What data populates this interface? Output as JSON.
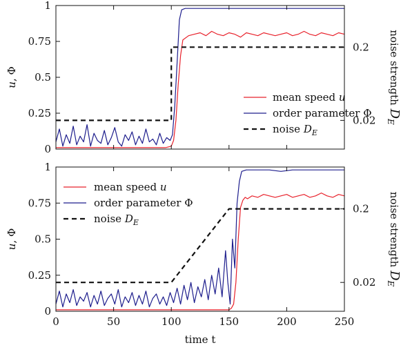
{
  "colors": {
    "speed": "#e8202a",
    "order": "#1c1c8c",
    "noise": "#111111"
  },
  "chart_data": [
    {
      "type": "line",
      "title": "",
      "xlim": [
        0,
        250
      ],
      "ylim": [
        0,
        1
      ],
      "x_ticks": [],
      "y_ticks": [
        0,
        0.25,
        0.5,
        0.75,
        1
      ],
      "y_tick_labels": [
        "0",
        "0.25",
        "0.5",
        "0.75",
        "1"
      ],
      "right_ticks": [
        0.02,
        0.2
      ],
      "right_tick_labels": [
        "0.02",
        "0.2"
      ],
      "ylabel_parts": [
        "u",
        ", Φ"
      ],
      "y2label_parts": [
        "noise strength ",
        "D",
        "E"
      ],
      "grid": false,
      "legend_position": "center-right",
      "legend": [
        {
          "text": "mean speed ",
          "var": "u",
          "sub": "",
          "style": "solid",
          "color": "#e8202a"
        },
        {
          "text": "order parameter Φ",
          "var": "",
          "sub": "",
          "style": "solid",
          "color": "#1c1c8c"
        },
        {
          "text": "noise ",
          "var": "D",
          "sub": "E",
          "style": "dashed",
          "color": "#111111"
        }
      ],
      "series": [
        {
          "key": "speed",
          "color": "#e8202a",
          "style": "solid",
          "x": [
            0,
            5,
            10,
            15,
            20,
            25,
            30,
            35,
            40,
            45,
            50,
            55,
            60,
            65,
            70,
            75,
            80,
            85,
            90,
            95,
            100,
            102,
            104,
            106,
            108,
            110,
            115,
            120,
            125,
            130,
            135,
            140,
            145,
            150,
            155,
            160,
            165,
            170,
            175,
            180,
            185,
            190,
            195,
            200,
            205,
            210,
            215,
            220,
            225,
            230,
            235,
            240,
            245,
            250
          ],
          "y": [
            0.01,
            0.01,
            0.01,
            0.01,
            0.01,
            0.01,
            0.01,
            0.01,
            0.01,
            0.01,
            0.01,
            0.01,
            0.01,
            0.01,
            0.01,
            0.01,
            0.01,
            0.01,
            0.01,
            0.01,
            0.02,
            0.06,
            0.2,
            0.45,
            0.65,
            0.76,
            0.79,
            0.8,
            0.81,
            0.79,
            0.82,
            0.8,
            0.79,
            0.81,
            0.8,
            0.78,
            0.81,
            0.8,
            0.79,
            0.81,
            0.8,
            0.79,
            0.8,
            0.81,
            0.79,
            0.8,
            0.82,
            0.8,
            0.79,
            0.81,
            0.8,
            0.79,
            0.81,
            0.8
          ]
        },
        {
          "key": "order",
          "color": "#1c1c8c",
          "style": "solid",
          "x": [
            0,
            3,
            6,
            9,
            12,
            15,
            18,
            21,
            24,
            27,
            30,
            33,
            36,
            39,
            42,
            45,
            48,
            51,
            54,
            57,
            60,
            63,
            66,
            69,
            72,
            75,
            78,
            81,
            84,
            87,
            90,
            93,
            96,
            99,
            101,
            103,
            105,
            107,
            109,
            112,
            120,
            130,
            140,
            150,
            160,
            170,
            180,
            190,
            200,
            210,
            220,
            230,
            240,
            250
          ],
          "y": [
            0.05,
            0.14,
            0.02,
            0.1,
            0.04,
            0.16,
            0.03,
            0.09,
            0.05,
            0.17,
            0.02,
            0.11,
            0.06,
            0.04,
            0.13,
            0.03,
            0.08,
            0.15,
            0.05,
            0.02,
            0.1,
            0.06,
            0.12,
            0.03,
            0.09,
            0.04,
            0.14,
            0.05,
            0.07,
            0.03,
            0.11,
            0.04,
            0.08,
            0.06,
            0.1,
            0.3,
            0.6,
            0.9,
            0.97,
            0.98,
            0.98,
            0.98,
            0.98,
            0.98,
            0.98,
            0.98,
            0.98,
            0.98,
            0.98,
            0.98,
            0.98,
            0.98,
            0.98,
            0.98
          ]
        },
        {
          "key": "noise",
          "color": "#111111",
          "style": "dashed",
          "x": [
            0,
            100,
            100,
            250
          ],
          "y": [
            0.2,
            0.2,
            0.71,
            0.71
          ]
        }
      ]
    },
    {
      "type": "line",
      "title": "",
      "xlim": [
        0,
        250
      ],
      "ylim": [
        0,
        1
      ],
      "x_ticks": [
        0,
        50,
        100,
        150,
        200,
        250
      ],
      "x_tick_labels": [
        "0",
        "50",
        "100",
        "150",
        "200",
        "250"
      ],
      "y_ticks": [
        0,
        0.25,
        0.5,
        0.75,
        1
      ],
      "y_tick_labels": [
        "0",
        "0.25",
        "0.5",
        "0.75",
        "1"
      ],
      "right_ticks": [
        0.02,
        0.2
      ],
      "right_tick_labels": [
        "0.02",
        "0.2"
      ],
      "xlabel": "time t",
      "ylabel_parts": [
        "u",
        ", Φ"
      ],
      "y2label_parts": [
        "noise strength ",
        "D",
        "E"
      ],
      "grid": false,
      "legend_position": "top-left",
      "legend": [
        {
          "text": "mean speed ",
          "var": "u",
          "sub": "",
          "style": "solid",
          "color": "#e8202a"
        },
        {
          "text": "order parameter Φ",
          "var": "",
          "sub": "",
          "style": "solid",
          "color": "#1c1c8c"
        },
        {
          "text": "noise ",
          "var": "D",
          "sub": "E",
          "style": "dashed",
          "color": "#111111"
        }
      ],
      "series": [
        {
          "key": "speed",
          "color": "#e8202a",
          "style": "solid",
          "x": [
            0,
            10,
            20,
            30,
            40,
            50,
            60,
            70,
            80,
            90,
            100,
            110,
            120,
            130,
            140,
            145,
            150,
            152,
            154,
            156,
            158,
            160,
            162,
            164,
            166,
            170,
            175,
            180,
            185,
            190,
            195,
            200,
            205,
            210,
            215,
            220,
            225,
            230,
            235,
            240,
            245,
            250
          ],
          "y": [
            0.01,
            0.01,
            0.01,
            0.01,
            0.01,
            0.01,
            0.01,
            0.01,
            0.01,
            0.01,
            0.01,
            0.01,
            0.01,
            0.01,
            0.01,
            0.01,
            0.01,
            0.02,
            0.05,
            0.2,
            0.5,
            0.72,
            0.77,
            0.79,
            0.78,
            0.8,
            0.79,
            0.81,
            0.8,
            0.79,
            0.8,
            0.81,
            0.79,
            0.8,
            0.81,
            0.79,
            0.8,
            0.82,
            0.8,
            0.79,
            0.81,
            0.8
          ]
        },
        {
          "key": "order",
          "color": "#1c1c8c",
          "style": "solid",
          "x": [
            0,
            3,
            6,
            9,
            12,
            15,
            18,
            21,
            24,
            27,
            30,
            33,
            36,
            39,
            42,
            45,
            48,
            51,
            54,
            57,
            60,
            63,
            66,
            69,
            72,
            75,
            78,
            81,
            84,
            87,
            90,
            93,
            96,
            99,
            102,
            105,
            108,
            111,
            114,
            117,
            120,
            123,
            126,
            129,
            132,
            135,
            138,
            141,
            144,
            147,
            149,
            151,
            153,
            155,
            157,
            159,
            161,
            165,
            175,
            185,
            195,
            205,
            215,
            225,
            235,
            245,
            250
          ],
          "y": [
            0.05,
            0.14,
            0.03,
            0.12,
            0.06,
            0.15,
            0.04,
            0.1,
            0.07,
            0.13,
            0.03,
            0.11,
            0.05,
            0.14,
            0.04,
            0.09,
            0.12,
            0.05,
            0.15,
            0.03,
            0.1,
            0.06,
            0.13,
            0.04,
            0.11,
            0.05,
            0.14,
            0.03,
            0.09,
            0.12,
            0.05,
            0.1,
            0.04,
            0.13,
            0.06,
            0.16,
            0.05,
            0.18,
            0.08,
            0.2,
            0.06,
            0.17,
            0.1,
            0.22,
            0.08,
            0.25,
            0.12,
            0.3,
            0.1,
            0.42,
            0.2,
            0.05,
            0.5,
            0.3,
            0.75,
            0.9,
            0.97,
            0.98,
            0.98,
            0.98,
            0.97,
            0.98,
            0.98,
            0.98,
            0.98,
            0.98,
            0.98
          ]
        },
        {
          "key": "noise",
          "color": "#111111",
          "style": "dashed",
          "x": [
            0,
            100,
            150,
            250
          ],
          "y": [
            0.2,
            0.2,
            0.71,
            0.71
          ]
        }
      ]
    }
  ]
}
